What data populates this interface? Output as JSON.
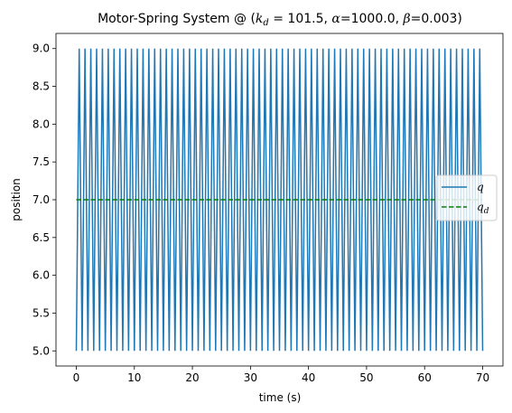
{
  "chart_data": {
    "type": "line",
    "title_prefix": "Motor-Spring System @ (",
    "title_parts": {
      "kd_symbol": "k",
      "kd_sub": "d",
      "kd_value": " = 101.5, ",
      "alpha_symbol": "α",
      "alpha_value": "=1000.0, ",
      "beta_symbol": "β",
      "beta_value": "=0.003)"
    },
    "xlabel": "time (s)",
    "ylabel": "position",
    "xlim": [
      -3.5,
      73.5
    ],
    "ylim": [
      4.8,
      9.2
    ],
    "xticks": [
      0,
      10,
      20,
      30,
      40,
      50,
      60,
      70
    ],
    "xtick_labels": [
      "0",
      "10",
      "20",
      "30",
      "40",
      "50",
      "60",
      "70"
    ],
    "yticks": [
      5.0,
      5.5,
      6.0,
      6.5,
      7.0,
      7.5,
      8.0,
      8.5,
      9.0
    ],
    "ytick_labels": [
      "5.0",
      "5.5",
      "6.0",
      "6.5",
      "7.0",
      "7.5",
      "8.0",
      "8.5",
      "9.0"
    ],
    "grid": false,
    "legend_position": "center-right",
    "series": [
      {
        "name": "q",
        "style": "solid",
        "color": "#1f77b4",
        "oscillation": {
          "t_start": 0,
          "t_end": 70,
          "min": 5.0,
          "max": 9.0,
          "cycles": 70
        }
      },
      {
        "name": "q_d",
        "legend_symbol": "q",
        "legend_sub": "d",
        "style": "dashed",
        "color": "#008000",
        "x": [
          0,
          70
        ],
        "y": [
          7.0,
          7.0
        ]
      }
    ]
  }
}
